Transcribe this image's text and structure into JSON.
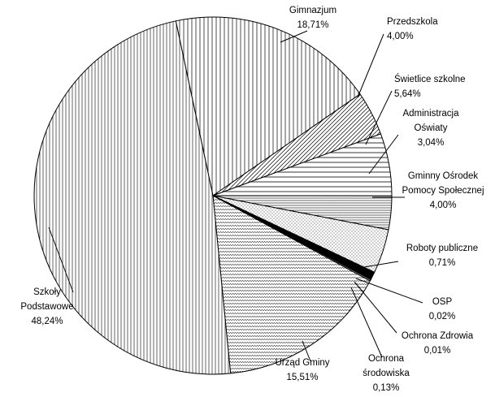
{
  "chart_data": {
    "type": "pie",
    "start_angle_deg": -102,
    "direction": "clockwise",
    "slices": [
      {
        "name": "Gimnazjum",
        "label": "Gimnazjum",
        "value": 18.71,
        "value_label": "18,71%",
        "pattern": "pat-vert-light"
      },
      {
        "name": "Przedszkola",
        "label": "Przedszkola",
        "value": 4.0,
        "value_label": "4,00%",
        "pattern": "pat-diag"
      },
      {
        "name": "Świetlice szkolne",
        "label": "Świetlice szkolne",
        "value": 5.64,
        "value_label": "5,64%",
        "pattern": "pat-horiz"
      },
      {
        "name": "Administracja Oświaty",
        "label": "Administracja\nOświaty",
        "value": 3.04,
        "value_label": "3,04%",
        "pattern": "pat-horiz-dense"
      },
      {
        "name": "Gminny Ośrodek Pomocy Społecznej",
        "label": "Gminny Ośrodek\nPomocy Społecznej",
        "value": 4.0,
        "value_label": "4,00%",
        "pattern": "pat-dots"
      },
      {
        "name": "Roboty publiczne",
        "label": "Roboty publiczne",
        "value": 0.71,
        "value_label": "0,71%",
        "fill": "#000000"
      },
      {
        "name": "OSP",
        "label": "OSP",
        "value": 0.02,
        "value_label": "0,02%",
        "fill": "#6e1e6e"
      },
      {
        "name": "Ochrona Zdrowia",
        "label": "Ochrona Zdrowia",
        "value": 0.01,
        "value_label": "0,01%",
        "fill": "#c040a0"
      },
      {
        "name": "Ochrona środowiska",
        "label": "Ochrona\nśrodowiska",
        "value": 0.13,
        "value_label": "0,13%",
        "fill": "#9a9a9a"
      },
      {
        "name": "Urząd Gminy",
        "label": "Urząd Gminy",
        "value": 15.51,
        "value_label": "15,51%",
        "pattern": "pat-zigzag"
      },
      {
        "name": "Szkoły Podstawowe",
        "label": "Szkoły\nPodstawowe",
        "value": 48.24,
        "value_label": "48,24%",
        "pattern": "pat-vert"
      }
    ]
  }
}
